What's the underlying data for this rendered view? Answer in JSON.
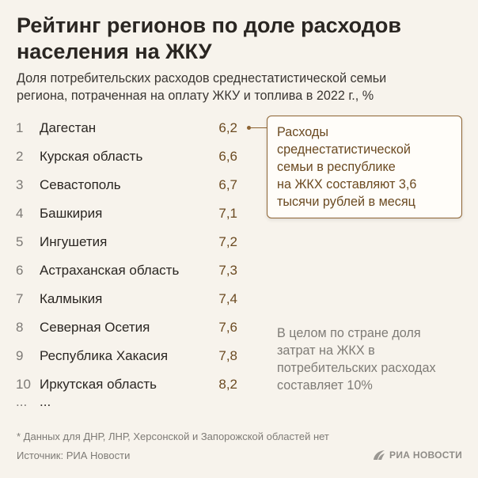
{
  "title_lines": [
    "Рейтинг регионов по доле расходов",
    "населения на ЖКУ"
  ],
  "subtitle_lines": [
    "Доля потребительских расходов среднестатистической семьи",
    "региона, потраченная на оплату ЖКУ и топлива в 2022 г., %"
  ],
  "chart_data": {
    "type": "table",
    "columns": [
      "rank",
      "region",
      "value"
    ],
    "rows": [
      {
        "rank": "1",
        "region": "Дагестан",
        "value": "6,2"
      },
      {
        "rank": "2",
        "region": "Курская область",
        "value": "6,6"
      },
      {
        "rank": "3",
        "region": "Севастополь",
        "value": "6,7"
      },
      {
        "rank": "4",
        "region": "Башкирия",
        "value": "7,1"
      },
      {
        "rank": "5",
        "region": "Ингушетия",
        "value": "7,2"
      },
      {
        "rank": "6",
        "region": "Астраханская область",
        "value": "7,3"
      },
      {
        "rank": "7",
        "region": "Калмыкия",
        "value": "7,4"
      },
      {
        "rank": "8",
        "region": "Северная Осетия",
        "value": "7,6"
      },
      {
        "rank": "9",
        "region": "Республика Хакасия",
        "value": "7,8"
      },
      {
        "rank": "10",
        "region": "Иркутская область",
        "value": "8,2"
      }
    ],
    "ellipsis": {
      "rank": "...",
      "region": "..."
    }
  },
  "annotation_lines": [
    "Расходы",
    "среднестатистической",
    "семьи в республике",
    "на ЖКХ составляют 3,6",
    "тысячи рублей в месяц"
  ],
  "country_note_lines": [
    "В целом по стране доля",
    "затрат на ЖКХ в",
    "потребительских расходах",
    "составляет 10%"
  ],
  "footnote": "* Данных для ДНР, ЛНР, Херсонской и Запорожской областей нет",
  "source": "Источник: РИА Новости",
  "logo_text": "РИА НОВОСТИ",
  "colors": {
    "background": "#f7f3ec",
    "accent": "#8d6332",
    "value_text": "#6b4a21",
    "muted_text": "#7e7b76"
  }
}
